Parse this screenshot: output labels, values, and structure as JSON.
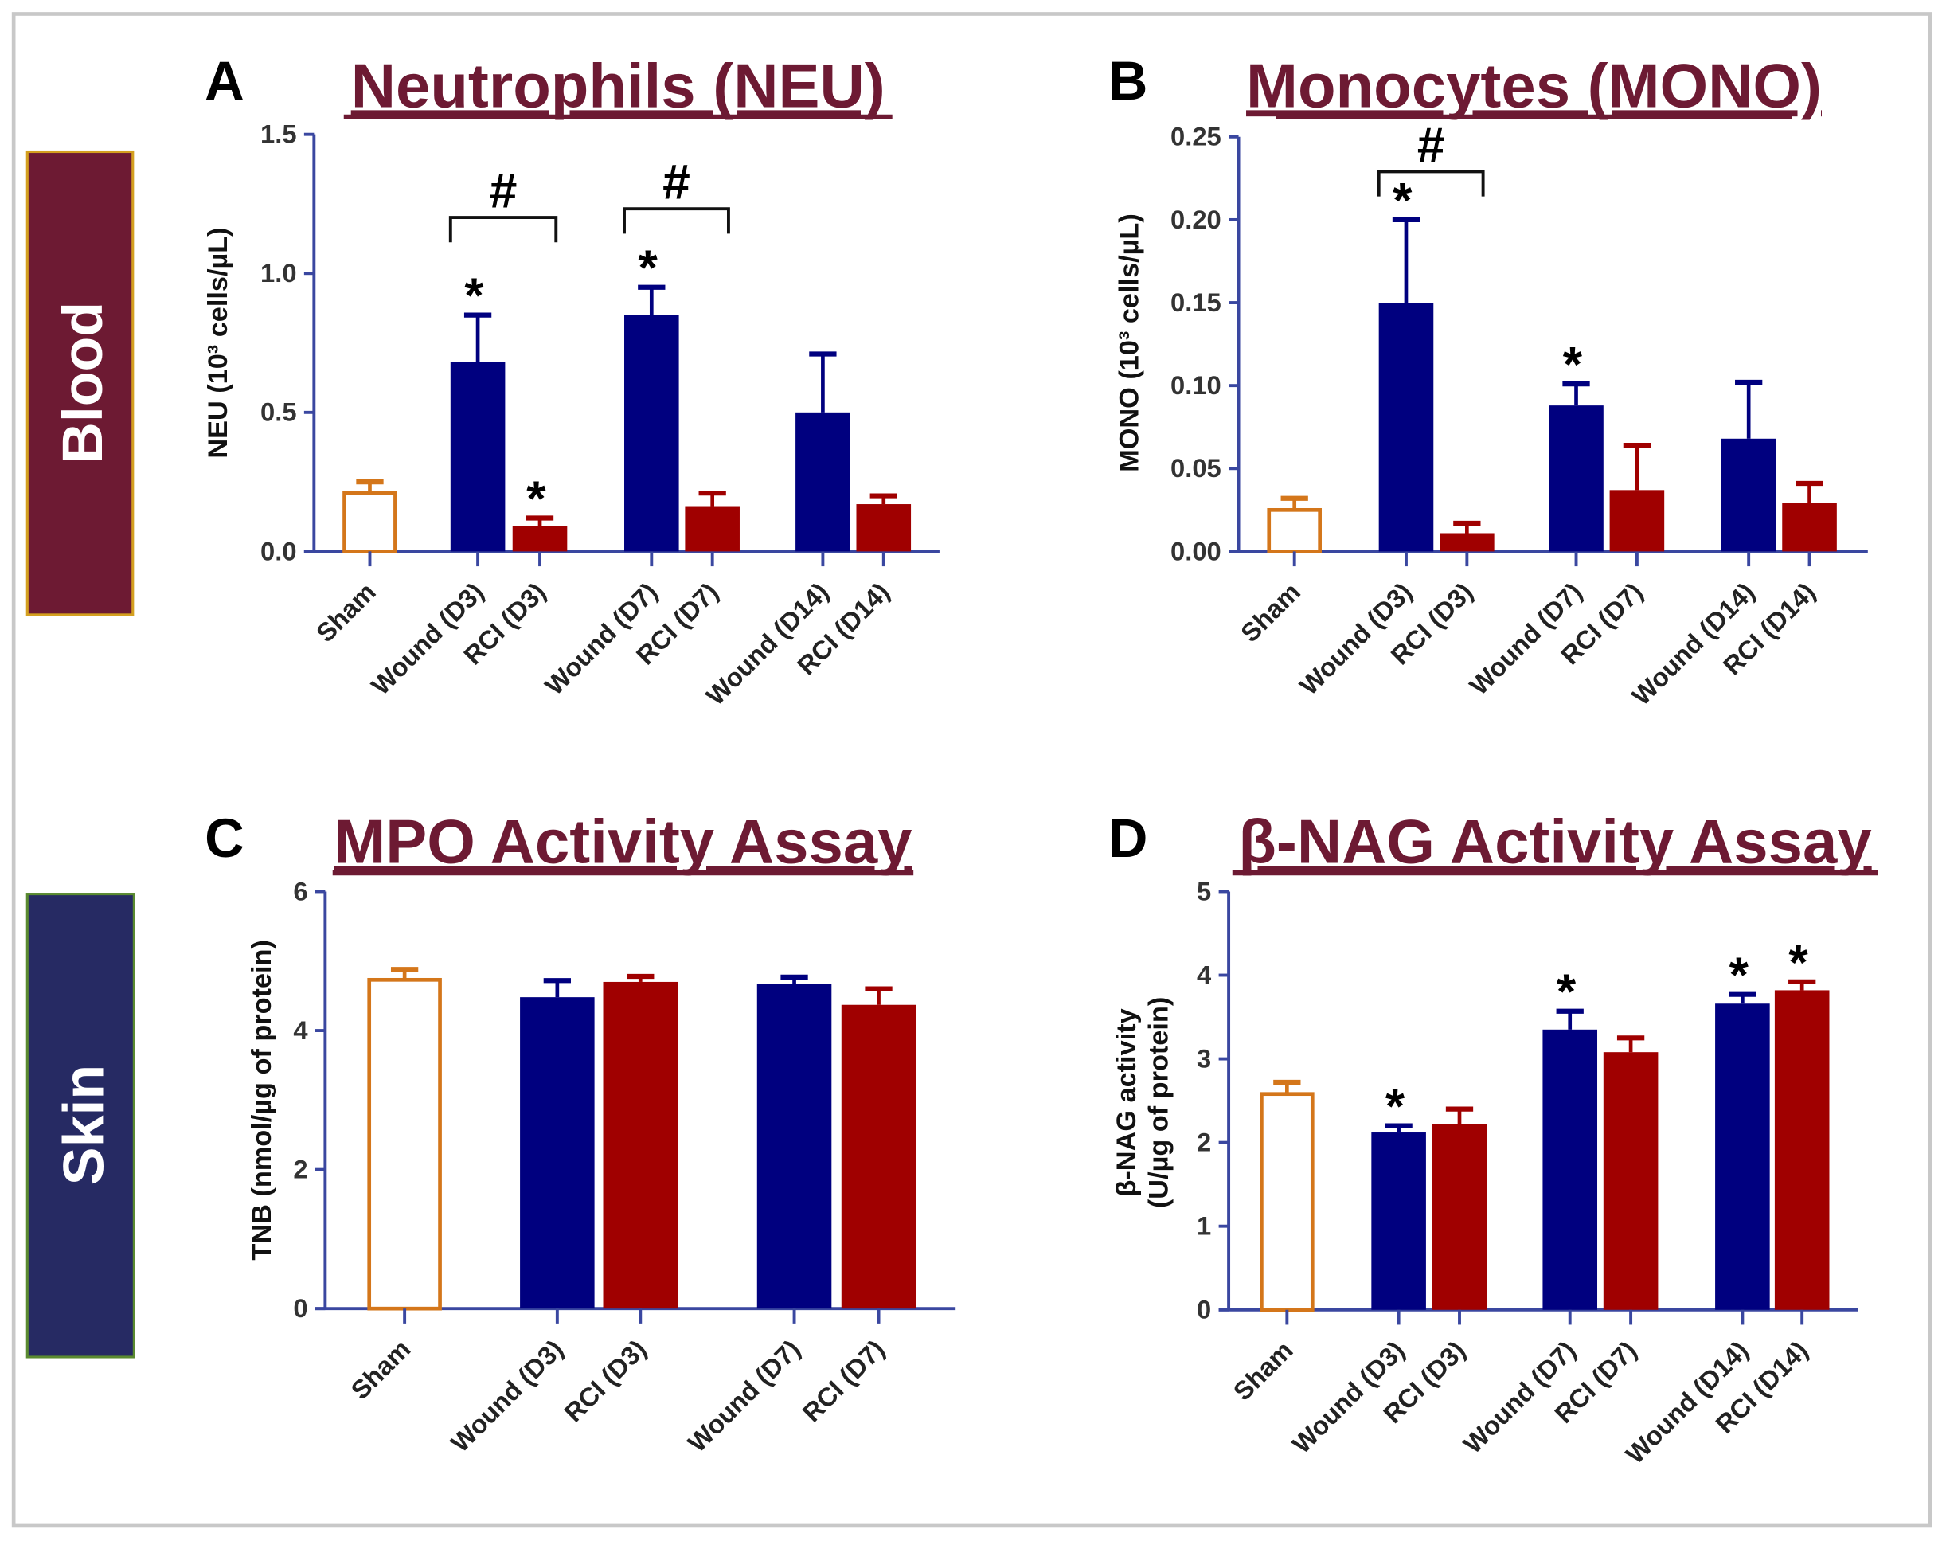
{
  "colors": {
    "axis": "#3a47a0",
    "sham": "#d4761a",
    "wound": "#00007f",
    "rci": "#a00000",
    "title": "#6d1a33",
    "blood_box": "#6d1a33",
    "skin_box": "#262a63"
  },
  "side_labels": {
    "blood": "Blood",
    "skin": "Skin"
  },
  "chart_data": [
    {
      "panel": "A",
      "type": "bar",
      "title": "Neutrophils (NEU)",
      "ylabel": "NEU (10³ cells/µL)",
      "ylim": [
        0,
        1.5
      ],
      "yticks": [
        "0.0",
        "0.5",
        "1.0",
        "1.5"
      ],
      "ytick_values": [
        0,
        0.5,
        1.0,
        1.5
      ],
      "categories": [
        "Sham",
        "Wound (D3)",
        "RCI (D3)",
        "Wound (D7)",
        "RCI (D7)",
        "Wound (D14)",
        "RCI (D14)"
      ],
      "groups": [
        "sham",
        "wound",
        "rci",
        "wound",
        "rci",
        "wound",
        "rci"
      ],
      "values": [
        0.21,
        0.68,
        0.09,
        0.85,
        0.16,
        0.5,
        0.17
      ],
      "errors": [
        0.04,
        0.17,
        0.03,
        0.1,
        0.05,
        0.21,
        0.03
      ],
      "stars": [
        "",
        "*",
        "*",
        "*",
        "",
        "",
        ""
      ],
      "brackets": [
        {
          "from": 1,
          "to": 2,
          "label": "#"
        },
        {
          "from": 3,
          "to": 4,
          "label": "#"
        }
      ]
    },
    {
      "panel": "B",
      "type": "bar",
      "title": "Monocytes (MONO)",
      "ylabel": "MONO (10³ cells/µL)",
      "ylim": [
        0,
        0.25
      ],
      "yticks": [
        "0.00",
        "0.05",
        "0.10",
        "0.15",
        "0.20",
        "0.25"
      ],
      "ytick_values": [
        0,
        0.05,
        0.1,
        0.15,
        0.2,
        0.25
      ],
      "categories": [
        "Sham",
        "Wound (D3)",
        "RCI (D3)",
        "Wound (D7)",
        "RCI (D7)",
        "Wound (D14)",
        "RCI (D14)"
      ],
      "groups": [
        "sham",
        "wound",
        "rci",
        "wound",
        "rci",
        "wound",
        "rci"
      ],
      "values": [
        0.025,
        0.15,
        0.011,
        0.088,
        0.037,
        0.068,
        0.029
      ],
      "errors": [
        0.007,
        0.05,
        0.006,
        0.013,
        0.027,
        0.034,
        0.012
      ],
      "stars": [
        "",
        "*",
        "",
        "*",
        "",
        "",
        ""
      ],
      "brackets": [
        {
          "from": 1,
          "to": 2,
          "label": "#"
        }
      ]
    },
    {
      "panel": "C",
      "type": "bar",
      "title": "MPO Activity Assay",
      "ylabel": "TNB (nmol/µg of protein)",
      "ylim": [
        0,
        6
      ],
      "yticks": [
        "0",
        "2",
        "4",
        "6"
      ],
      "ytick_values": [
        0,
        2,
        4,
        6
      ],
      "categories": [
        "Sham",
        "Wound (D3)",
        "RCI (D3)",
        "Wound (D7)",
        "RCI (D7)"
      ],
      "groups": [
        "sham",
        "wound",
        "rci",
        "wound",
        "rci"
      ],
      "values": [
        4.73,
        4.48,
        4.7,
        4.67,
        4.37
      ],
      "errors": [
        0.15,
        0.24,
        0.08,
        0.1,
        0.23
      ],
      "stars": [
        "",
        "",
        "",
        "",
        ""
      ],
      "brackets": []
    },
    {
      "panel": "D",
      "type": "bar",
      "title": "β-NAG Activity Assay",
      "ylabel": "β-NAG activity",
      "ylabel2": "(U/µg of protein)",
      "ylim": [
        0,
        5
      ],
      "yticks": [
        "0",
        "1",
        "2",
        "3",
        "4",
        "5"
      ],
      "ytick_values": [
        0,
        1,
        2,
        3,
        4,
        5
      ],
      "categories": [
        "Sham",
        "Wound (D3)",
        "RCI (D3)",
        "Wound (D7)",
        "RCI (D7)",
        "Wound (D14)",
        "RCI (D14)"
      ],
      "groups": [
        "sham",
        "wound",
        "rci",
        "wound",
        "rci",
        "wound",
        "rci"
      ],
      "values": [
        2.58,
        2.12,
        2.22,
        3.35,
        3.08,
        3.66,
        3.82
      ],
      "errors": [
        0.14,
        0.08,
        0.18,
        0.22,
        0.17,
        0.11,
        0.1
      ],
      "stars": [
        "",
        "*",
        "",
        "*",
        "",
        "*",
        "*"
      ],
      "brackets": []
    }
  ]
}
